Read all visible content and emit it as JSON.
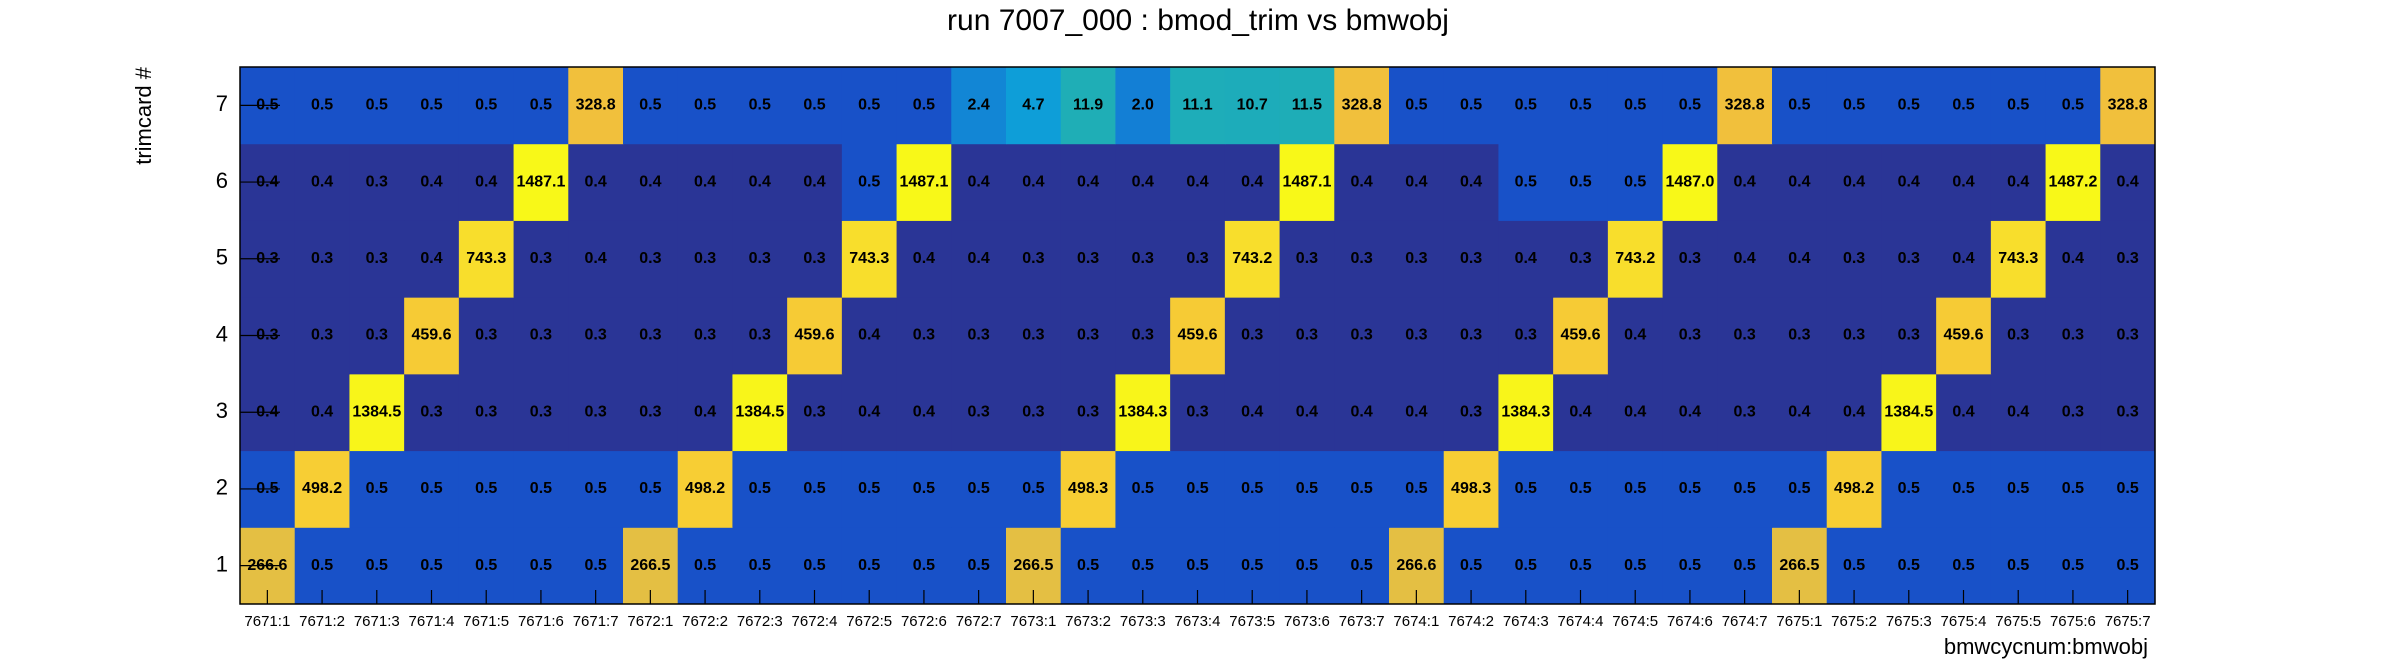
{
  "chart_data": {
    "type": "heatmap",
    "title": "run 7007_000 : bmod_trim vs bmwobj",
    "x_label": "bmwcycnum:bmwobj",
    "y_label": "trimcard #",
    "categories": [
      "7671:1",
      "7671:2",
      "7671:3",
      "7671:4",
      "7671:5",
      "7671:6",
      "7671:7",
      "7672:1",
      "7672:2",
      "7672:3",
      "7672:4",
      "7672:5",
      "7672:6",
      "7672:7",
      "7673:1",
      "7673:2",
      "7673:3",
      "7673:4",
      "7673:5",
      "7673:6",
      "7673:7",
      "7674:1",
      "7674:2",
      "7674:3",
      "7674:4",
      "7674:5",
      "7674:6",
      "7674:7",
      "7675:1",
      "7675:2",
      "7675:3",
      "7675:4",
      "7675:5",
      "7675:6",
      "7675:7"
    ],
    "ylim": [
      0.5,
      7.5
    ],
    "yticks": [
      1,
      2,
      3,
      4,
      5,
      6,
      7
    ],
    "z_log": true,
    "palette": [
      [
        0,
        "#2a3596"
      ],
      [
        0.045,
        "#2a3596"
      ],
      [
        0.055,
        "#1850c8"
      ],
      [
        0.2,
        "#1478d4"
      ],
      [
        0.33,
        "#0ea0d8"
      ],
      [
        0.45,
        "#22b0b0"
      ],
      [
        0.7,
        "#b0bc60"
      ],
      [
        0.83,
        "#f5c03a"
      ],
      [
        0.9,
        "#f8d830"
      ],
      [
        1,
        "#f8f818"
      ]
    ],
    "values": [
      [
        266.6,
        0.5,
        0.5,
        0.5,
        0.5,
        0.5,
        0.5,
        266.5,
        0.5,
        0.5,
        0.5,
        0.5,
        0.5,
        0.5,
        266.5,
        0.5,
        0.5,
        0.5,
        0.5,
        0.5,
        0.5,
        266.6,
        0.5,
        0.5,
        0.5,
        0.5,
        0.5,
        0.5,
        266.5,
        0.5,
        0.5,
        0.5,
        0.5,
        0.5,
        0.5
      ],
      [
        0.5,
        498.2,
        0.5,
        0.5,
        0.5,
        0.5,
        0.5,
        0.5,
        498.2,
        0.5,
        0.5,
        0.5,
        0.5,
        0.5,
        0.5,
        498.3,
        0.5,
        0.5,
        0.5,
        0.5,
        0.5,
        0.5,
        498.3,
        0.5,
        0.5,
        0.5,
        0.5,
        0.5,
        0.5,
        498.2,
        0.5,
        0.5,
        0.5,
        0.5,
        0.5
      ],
      [
        0.4,
        0.4,
        1384.5,
        0.3,
        0.3,
        0.3,
        0.3,
        0.3,
        0.4,
        1384.5,
        0.3,
        0.4,
        0.4,
        0.3,
        0.3,
        0.3,
        1384.3,
        0.3,
        0.4,
        0.4,
        0.4,
        0.4,
        0.3,
        1384.3,
        0.4,
        0.4,
        0.4,
        0.3,
        0.4,
        0.4,
        1384.5,
        0.4,
        0.4,
        0.3,
        0.3
      ],
      [
        0.3,
        0.3,
        0.3,
        459.6,
        0.3,
        0.3,
        0.3,
        0.3,
        0.3,
        0.3,
        459.6,
        0.4,
        0.3,
        0.3,
        0.3,
        0.3,
        0.3,
        459.6,
        0.3,
        0.3,
        0.3,
        0.3,
        0.3,
        0.3,
        459.6,
        0.4,
        0.3,
        0.3,
        0.3,
        0.3,
        0.3,
        459.6,
        0.3,
        0.3,
        0.3
      ],
      [
        0.3,
        0.3,
        0.3,
        0.4,
        743.3,
        0.3,
        0.4,
        0.3,
        0.3,
        0.3,
        0.3,
        743.3,
        0.4,
        0.4,
        0.3,
        0.3,
        0.3,
        0.3,
        743.2,
        0.3,
        0.3,
        0.3,
        0.3,
        0.4,
        0.3,
        743.2,
        0.3,
        0.4,
        0.4,
        0.3,
        0.3,
        0.4,
        743.3,
        0.4,
        0.3
      ],
      [
        0.4,
        0.4,
        0.3,
        0.4,
        0.4,
        1487.1,
        0.4,
        0.4,
        0.4,
        0.4,
        0.4,
        0.5,
        1487.1,
        0.4,
        0.4,
        0.4,
        0.4,
        0.4,
        0.4,
        1487.1,
        0.4,
        0.4,
        0.4,
        0.5,
        0.5,
        0.5,
        1487.0,
        0.4,
        0.4,
        0.4,
        0.4,
        0.4,
        0.4,
        1487.2,
        0.4
      ],
      [
        0.5,
        0.5,
        0.5,
        0.5,
        0.5,
        0.5,
        328.8,
        0.5,
        0.5,
        0.5,
        0.5,
        0.5,
        0.5,
        2.4,
        4.7,
        11.9,
        2.0,
        11.1,
        10.7,
        11.5,
        328.8,
        0.5,
        0.5,
        0.5,
        0.5,
        0.5,
        0.5,
        328.8,
        0.5,
        0.5,
        0.5,
        0.5,
        0.5,
        0.5,
        328.8
      ]
    ],
    "value_labels": [
      [
        "266.6",
        "0.5",
        "0.5",
        "0.5",
        "0.5",
        "0.5",
        "0.5",
        "266.5",
        "0.5",
        "0.5",
        "0.5",
        "0.5",
        "0.5",
        "0.5",
        "266.5",
        "0.5",
        "0.5",
        "0.5",
        "0.5",
        "0.5",
        "0.5",
        "266.6",
        "0.5",
        "0.5",
        "0.5",
        "0.5",
        "0.5",
        "0.5",
        "266.5",
        "0.5",
        "0.5",
        "0.5",
        "0.5",
        "0.5",
        "0.5"
      ],
      [
        "0.5",
        "498.2",
        "0.5",
        "0.5",
        "0.5",
        "0.5",
        "0.5",
        "0.5",
        "498.2",
        "0.5",
        "0.5",
        "0.5",
        "0.5",
        "0.5",
        "0.5",
        "498.3",
        "0.5",
        "0.5",
        "0.5",
        "0.5",
        "0.5",
        "0.5",
        "498.3",
        "0.5",
        "0.5",
        "0.5",
        "0.5",
        "0.5",
        "0.5",
        "498.2",
        "0.5",
        "0.5",
        "0.5",
        "0.5",
        "0.5"
      ],
      [
        "0.4",
        "0.4",
        "1384.5",
        "0.3",
        "0.3",
        "0.3",
        "0.3",
        "0.3",
        "0.4",
        "1384.5",
        "0.3",
        "0.4",
        "0.4",
        "0.3",
        "0.3",
        "0.3",
        "1384.3",
        "0.3",
        "0.4",
        "0.4",
        "0.4",
        "0.4",
        "0.3",
        "1384.3",
        "0.4",
        "0.4",
        "0.4",
        "0.3",
        "0.4",
        "0.4",
        "1384.5",
        "0.4",
        "0.4",
        "0.3",
        "0.3"
      ],
      [
        "0.3",
        "0.3",
        "0.3",
        "459.6",
        "0.3",
        "0.3",
        "0.3",
        "0.3",
        "0.3",
        "0.3",
        "459.6",
        "0.4",
        "0.3",
        "0.3",
        "0.3",
        "0.3",
        "0.3",
        "459.6",
        "0.3",
        "0.3",
        "0.3",
        "0.3",
        "0.3",
        "0.3",
        "459.6",
        "0.4",
        "0.3",
        "0.3",
        "0.3",
        "0.3",
        "0.3",
        "459.6",
        "0.3",
        "0.3",
        "0.3"
      ],
      [
        "0.3",
        "0.3",
        "0.3",
        "0.4",
        "743.3",
        "0.3",
        "0.4",
        "0.3",
        "0.3",
        "0.3",
        "0.3",
        "743.3",
        "0.4",
        "0.4",
        "0.3",
        "0.3",
        "0.3",
        "0.3",
        "743.2",
        "0.3",
        "0.3",
        "0.3",
        "0.3",
        "0.4",
        "0.3",
        "743.2",
        "0.3",
        "0.4",
        "0.4",
        "0.3",
        "0.3",
        "0.4",
        "743.3",
        "0.4",
        "0.3"
      ],
      [
        "0.4",
        "0.4",
        "0.3",
        "0.4",
        "0.4",
        "1487.1",
        "0.4",
        "0.4",
        "0.4",
        "0.4",
        "0.4",
        "0.5",
        "1487.1",
        "0.4",
        "0.4",
        "0.4",
        "0.4",
        "0.4",
        "0.4",
        "1487.1",
        "0.4",
        "0.4",
        "0.4",
        "0.5",
        "0.5",
        "0.5",
        "1487.0",
        "0.4",
        "0.4",
        "0.4",
        "0.4",
        "0.4",
        "0.4",
        "1487.2",
        "0.4"
      ],
      [
        "0.5",
        "0.5",
        "0.5",
        "0.5",
        "0.5",
        "0.5",
        "328.8",
        "0.5",
        "0.5",
        "0.5",
        "0.5",
        "0.5",
        "0.5",
        "2.4",
        "4.7",
        "11.9",
        "2.0",
        "11.1",
        "10.7",
        "11.5",
        "328.8",
        "0.5",
        "0.5",
        "0.5",
        "0.5",
        "0.5",
        "0.5",
        "328.8",
        "0.5",
        "0.5",
        "0.5",
        "0.5",
        "0.5",
        "0.5",
        "328.8"
      ]
    ]
  }
}
